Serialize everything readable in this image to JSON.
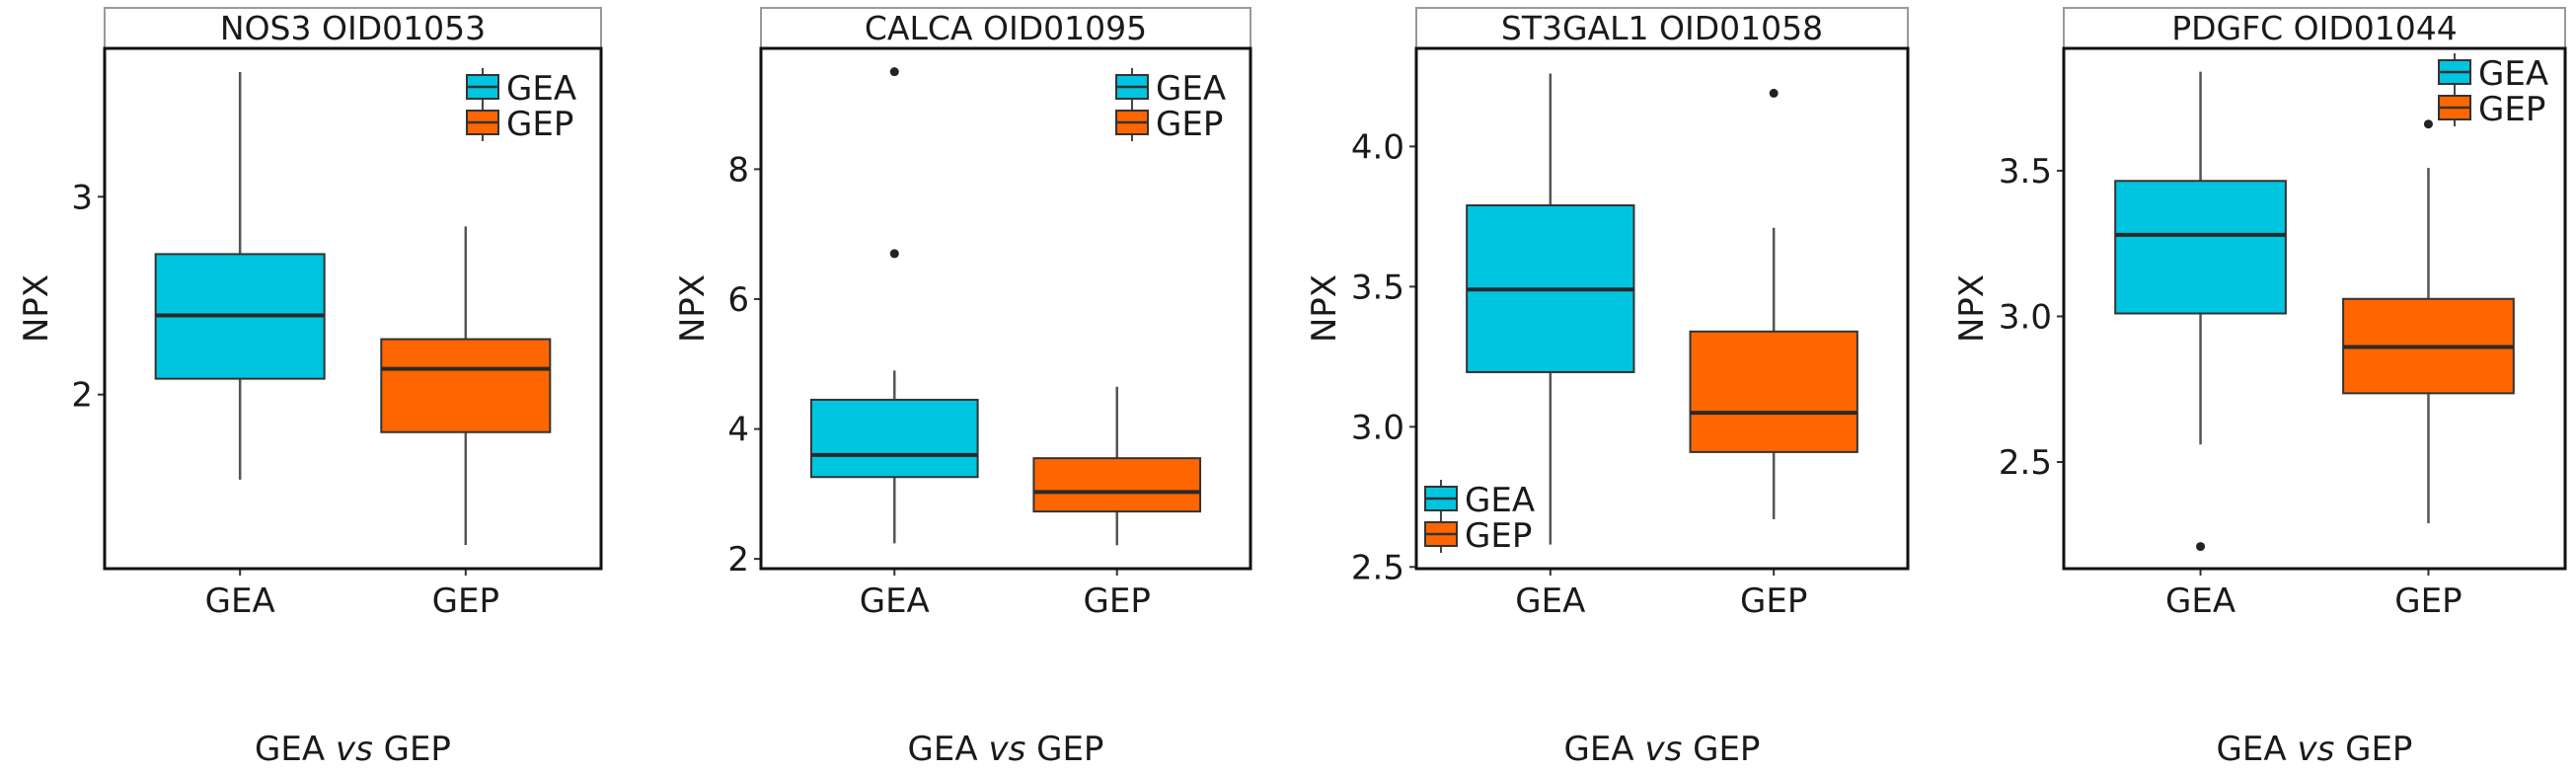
{
  "colors": {
    "GEA": "#00c5e0",
    "GEP": "#ff6600",
    "outline": "#333333"
  },
  "chart_data": [
    {
      "type": "box",
      "title": "NOS3 OID01053",
      "xlabel": [
        "GEA ",
        "vs",
        " GEP"
      ],
      "ylabel": "NPX",
      "categories": [
        "GEA",
        "GEP"
      ],
      "ylim": [
        1.12,
        3.75
      ],
      "yticks": [
        2,
        3
      ],
      "ytick_labels": [
        "2",
        "3"
      ],
      "legend": {
        "placement": "top-right",
        "entries": [
          "GEA",
          "GEP"
        ]
      },
      "grid": false,
      "boxes": [
        {
          "group": "GEA",
          "whisker_low": 1.57,
          "q1": 2.08,
          "median": 2.4,
          "q3": 2.71,
          "whisker_high": 3.63,
          "outliers": []
        },
        {
          "group": "GEP",
          "whisker_low": 1.24,
          "q1": 1.81,
          "median": 2.13,
          "q3": 2.28,
          "whisker_high": 2.85,
          "outliers": []
        }
      ]
    },
    {
      "type": "box",
      "title": "CALCA OID01095",
      "xlabel": [
        "GEA ",
        "vs",
        " GEP"
      ],
      "ylabel": "NPX",
      "categories": [
        "GEA",
        "GEP"
      ],
      "ylim": [
        1.85,
        9.86
      ],
      "yticks": [
        2,
        4,
        6,
        8
      ],
      "ytick_labels": [
        "2",
        "4",
        "6",
        "8"
      ],
      "legend": {
        "placement": "top-right",
        "entries": [
          "GEA",
          "GEP"
        ]
      },
      "grid": false,
      "boxes": [
        {
          "group": "GEA",
          "whisker_low": 2.24,
          "q1": 3.26,
          "median": 3.6,
          "q3": 4.45,
          "whisker_high": 4.9,
          "outliers": [
            9.5,
            6.7
          ]
        },
        {
          "group": "GEP",
          "whisker_low": 2.21,
          "q1": 2.73,
          "median": 3.03,
          "q3": 3.55,
          "whisker_high": 4.65,
          "outliers": []
        }
      ]
    },
    {
      "type": "box",
      "title": "ST3GAL1 OID01058",
      "xlabel": [
        "GEA ",
        "vs",
        " GEP"
      ],
      "ylabel": "NPX",
      "categories": [
        "GEA",
        "GEP"
      ],
      "ylim": [
        2.494,
        4.35
      ],
      "yticks": [
        2.5,
        3.0,
        3.5,
        4.0
      ],
      "ytick_labels": [
        "2.5",
        "3.0",
        "3.5",
        "4.0"
      ],
      "legend": {
        "placement": "bottom-left",
        "entries": [
          "GEA",
          "GEP"
        ]
      },
      "grid": false,
      "boxes": [
        {
          "group": "GEA",
          "whisker_low": 2.58,
          "q1": 3.195,
          "median": 3.49,
          "q3": 3.79,
          "whisker_high": 4.26,
          "outliers": []
        },
        {
          "group": "GEP",
          "whisker_low": 2.67,
          "q1": 2.91,
          "median": 3.05,
          "q3": 3.34,
          "whisker_high": 3.71,
          "outliers": [
            4.19
          ]
        }
      ]
    },
    {
      "type": "box",
      "title": "PDGFC OID01044",
      "xlabel": [
        "GEA ",
        "vs",
        " GEP"
      ],
      "ylabel": "NPX",
      "categories": [
        "GEA",
        "GEP"
      ],
      "ylim": [
        2.134,
        3.92
      ],
      "yticks": [
        2.5,
        3.0,
        3.5
      ],
      "ytick_labels": [
        "2.5",
        "3.0",
        "3.5"
      ],
      "legend": {
        "placement": "top-right",
        "entries": [
          "GEA",
          "GEP"
        ]
      },
      "grid": false,
      "boxes": [
        {
          "group": "GEA",
          "whisker_low": 2.56,
          "q1": 3.01,
          "median": 3.28,
          "q3": 3.465,
          "whisker_high": 3.84,
          "outliers": [
            2.21
          ]
        },
        {
          "group": "GEP",
          "whisker_low": 2.29,
          "q1": 2.736,
          "median": 2.895,
          "q3": 3.06,
          "whisker_high": 3.51,
          "outliers": [
            3.66
          ]
        }
      ]
    }
  ]
}
